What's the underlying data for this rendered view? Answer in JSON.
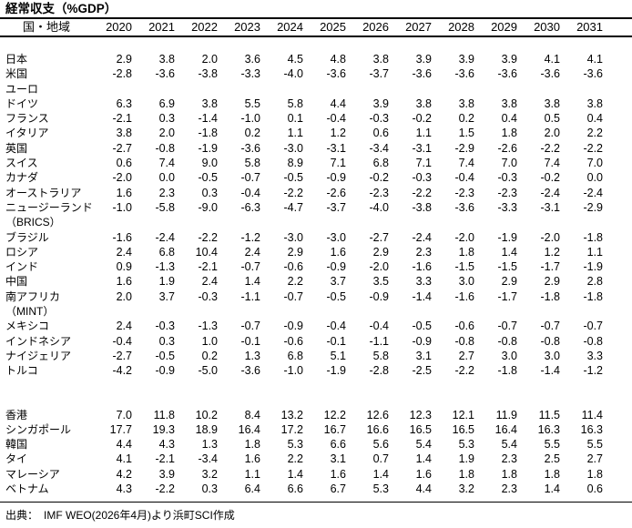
{
  "title": "経常収支（%GDP）",
  "header": {
    "label": "国・地域",
    "years": [
      "2020",
      "2021",
      "2022",
      "2023",
      "2024",
      "2025",
      "2026",
      "2027",
      "2028",
      "2029",
      "2030",
      "2031"
    ]
  },
  "rows": [
    {
      "kind": "spacer"
    },
    {
      "kind": "data",
      "label": "日本",
      "values": [
        "2.9",
        "3.8",
        "2.0",
        "3.6",
        "4.5",
        "4.8",
        "3.8",
        "3.9",
        "3.9",
        "3.9",
        "4.1",
        "4.1"
      ]
    },
    {
      "kind": "data",
      "label": "米国",
      "values": [
        "-2.8",
        "-3.6",
        "-3.8",
        "-3.3",
        "-4.0",
        "-3.6",
        "-3.7",
        "-3.6",
        "-3.6",
        "-3.6",
        "-3.6",
        "-3.6"
      ]
    },
    {
      "kind": "group",
      "label": "ユーロ",
      "values": []
    },
    {
      "kind": "data",
      "label": "ドイツ",
      "values": [
        "6.3",
        "6.9",
        "3.8",
        "5.5",
        "5.8",
        "4.4",
        "3.9",
        "3.8",
        "3.8",
        "3.8",
        "3.8",
        "3.8"
      ]
    },
    {
      "kind": "data",
      "label": "フランス",
      "values": [
        "-2.1",
        "0.3",
        "-1.4",
        "-1.0",
        "0.1",
        "-0.4",
        "-0.3",
        "-0.2",
        "0.2",
        "0.4",
        "0.5",
        "0.4"
      ]
    },
    {
      "kind": "data",
      "label": "イタリア",
      "values": [
        "3.8",
        "2.0",
        "-1.8",
        "0.2",
        "1.1",
        "1.2",
        "0.6",
        "1.1",
        "1.5",
        "1.8",
        "2.0",
        "2.2"
      ]
    },
    {
      "kind": "data",
      "label": "英国",
      "values": [
        "-2.7",
        "-0.8",
        "-1.9",
        "-3.6",
        "-3.0",
        "-3.1",
        "-3.4",
        "-3.1",
        "-2.9",
        "-2.6",
        "-2.2",
        "-2.2"
      ]
    },
    {
      "kind": "data",
      "label": "スイス",
      "values": [
        "0.6",
        "7.4",
        "9.0",
        "5.8",
        "8.9",
        "7.1",
        "6.8",
        "7.1",
        "7.4",
        "7.0",
        "7.4",
        "7.0"
      ]
    },
    {
      "kind": "data",
      "label": "カナダ",
      "values": [
        "-2.0",
        "0.0",
        "-0.5",
        "-0.7",
        "-0.5",
        "-0.9",
        "-0.2",
        "-0.3",
        "-0.4",
        "-0.3",
        "-0.2",
        "0.0"
      ]
    },
    {
      "kind": "data",
      "label": "オーストラリア",
      "values": [
        "1.6",
        "2.3",
        "0.3",
        "-0.4",
        "-2.2",
        "-2.6",
        "-2.3",
        "-2.2",
        "-2.3",
        "-2.3",
        "-2.4",
        "-2.4"
      ]
    },
    {
      "kind": "data",
      "label": "ニュージーランド",
      "values": [
        "-1.0",
        "-5.8",
        "-9.0",
        "-6.3",
        "-4.7",
        "-3.7",
        "-4.0",
        "-3.8",
        "-3.6",
        "-3.3",
        "-3.1",
        "-2.9"
      ]
    },
    {
      "kind": "group",
      "label": "（BRICS）",
      "values": []
    },
    {
      "kind": "data",
      "label": "ブラジル",
      "values": [
        "-1.6",
        "-2.4",
        "-2.2",
        "-1.2",
        "-3.0",
        "-3.0",
        "-2.7",
        "-2.4",
        "-2.0",
        "-1.9",
        "-2.0",
        "-1.8"
      ]
    },
    {
      "kind": "data",
      "label": "ロシア",
      "values": [
        "2.4",
        "6.8",
        "10.4",
        "2.4",
        "2.9",
        "1.6",
        "2.9",
        "2.3",
        "1.8",
        "1.4",
        "1.2",
        "1.1"
      ]
    },
    {
      "kind": "data",
      "label": "インド",
      "values": [
        "0.9",
        "-1.3",
        "-2.1",
        "-0.7",
        "-0.6",
        "-0.9",
        "-2.0",
        "-1.6",
        "-1.5",
        "-1.5",
        "-1.7",
        "-1.9"
      ]
    },
    {
      "kind": "data",
      "label": "中国",
      "values": [
        "1.6",
        "1.9",
        "2.4",
        "1.4",
        "2.2",
        "3.7",
        "3.5",
        "3.3",
        "3.0",
        "2.9",
        "2.9",
        "2.8"
      ]
    },
    {
      "kind": "data",
      "label": "南アフリカ",
      "values": [
        "2.0",
        "3.7",
        "-0.3",
        "-1.1",
        "-0.7",
        "-0.5",
        "-0.9",
        "-1.4",
        "-1.6",
        "-1.7",
        "-1.8",
        "-1.8"
      ]
    },
    {
      "kind": "group",
      "label": "（MINT）",
      "values": []
    },
    {
      "kind": "data",
      "label": "メキシコ",
      "values": [
        "2.4",
        "-0.3",
        "-1.3",
        "-0.7",
        "-0.9",
        "-0.4",
        "-0.4",
        "-0.5",
        "-0.6",
        "-0.7",
        "-0.7",
        "-0.7"
      ]
    },
    {
      "kind": "data",
      "label": "インドネシア",
      "values": [
        "-0.4",
        "0.3",
        "1.0",
        "-0.1",
        "-0.6",
        "-0.1",
        "-1.1",
        "-0.9",
        "-0.8",
        "-0.8",
        "-0.8",
        "-0.8"
      ]
    },
    {
      "kind": "data",
      "label": "ナイジェリア",
      "values": [
        "-2.7",
        "-0.5",
        "0.2",
        "1.3",
        "6.8",
        "5.1",
        "5.8",
        "3.1",
        "2.7",
        "3.0",
        "3.0",
        "3.3"
      ]
    },
    {
      "kind": "data",
      "label": "トルコ",
      "values": [
        "-4.2",
        "-0.9",
        "-5.0",
        "-3.6",
        "-1.0",
        "-1.9",
        "-2.8",
        "-2.5",
        "-2.2",
        "-1.8",
        "-1.4",
        "-1.2"
      ]
    },
    {
      "kind": "spacer"
    },
    {
      "kind": "spacer"
    },
    {
      "kind": "data",
      "label": "香港",
      "values": [
        "7.0",
        "11.8",
        "10.2",
        "8.4",
        "13.2",
        "12.2",
        "12.6",
        "12.3",
        "12.1",
        "11.9",
        "11.5",
        "11.4"
      ]
    },
    {
      "kind": "data",
      "label": "シンガポール",
      "values": [
        "17.7",
        "19.3",
        "18.9",
        "16.4",
        "17.2",
        "16.7",
        "16.6",
        "16.5",
        "16.5",
        "16.4",
        "16.3",
        "16.3"
      ]
    },
    {
      "kind": "data",
      "label": "韓国",
      "values": [
        "4.4",
        "4.3",
        "1.3",
        "1.8",
        "5.3",
        "6.6",
        "5.6",
        "5.4",
        "5.3",
        "5.4",
        "5.5",
        "5.5"
      ]
    },
    {
      "kind": "data",
      "label": "タイ",
      "values": [
        "4.1",
        "-2.1",
        "-3.4",
        "1.6",
        "2.2",
        "3.1",
        "0.7",
        "1.4",
        "1.9",
        "2.3",
        "2.5",
        "2.7"
      ]
    },
    {
      "kind": "data",
      "label": "マレーシア",
      "values": [
        "4.2",
        "3.9",
        "3.2",
        "1.1",
        "1.4",
        "1.6",
        "1.4",
        "1.6",
        "1.8",
        "1.8",
        "1.8",
        "1.8"
      ]
    },
    {
      "kind": "data",
      "label": "ベトナム",
      "values": [
        "4.3",
        "-2.2",
        "0.3",
        "6.4",
        "6.6",
        "6.7",
        "5.3",
        "4.4",
        "3.2",
        "2.3",
        "1.4",
        "0.6"
      ]
    }
  ],
  "footer": {
    "source_text": "出典：　IMF WEO(2026年4月)より浜町SCI作成"
  },
  "colors": {
    "background": "#ffffff",
    "text": "#000000",
    "rule": "#000000"
  }
}
